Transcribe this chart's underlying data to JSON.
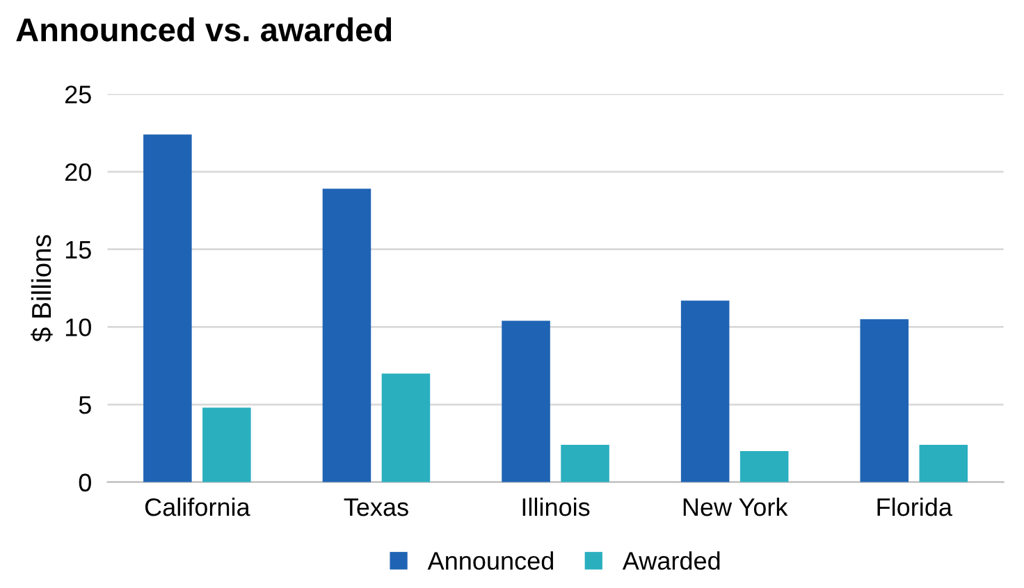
{
  "chart_data": {
    "type": "bar",
    "title": "Announced vs. awarded",
    "ylabel": "$ Billions",
    "categories": [
      "California",
      "Texas",
      "Illinois",
      "New York",
      "Florida"
    ],
    "series": [
      {
        "name": "Announced",
        "color": "#1f64b4",
        "values": [
          22.4,
          18.9,
          10.4,
          11.7,
          10.5
        ]
      },
      {
        "name": "Awarded",
        "color": "#2aafbf",
        "values": [
          4.8,
          7.0,
          2.4,
          2.0,
          2.4
        ]
      }
    ],
    "ylim": [
      0,
      25
    ],
    "yticks": [
      0,
      5,
      10,
      15,
      20,
      25
    ],
    "grid": "y",
    "legend": "bottom"
  }
}
